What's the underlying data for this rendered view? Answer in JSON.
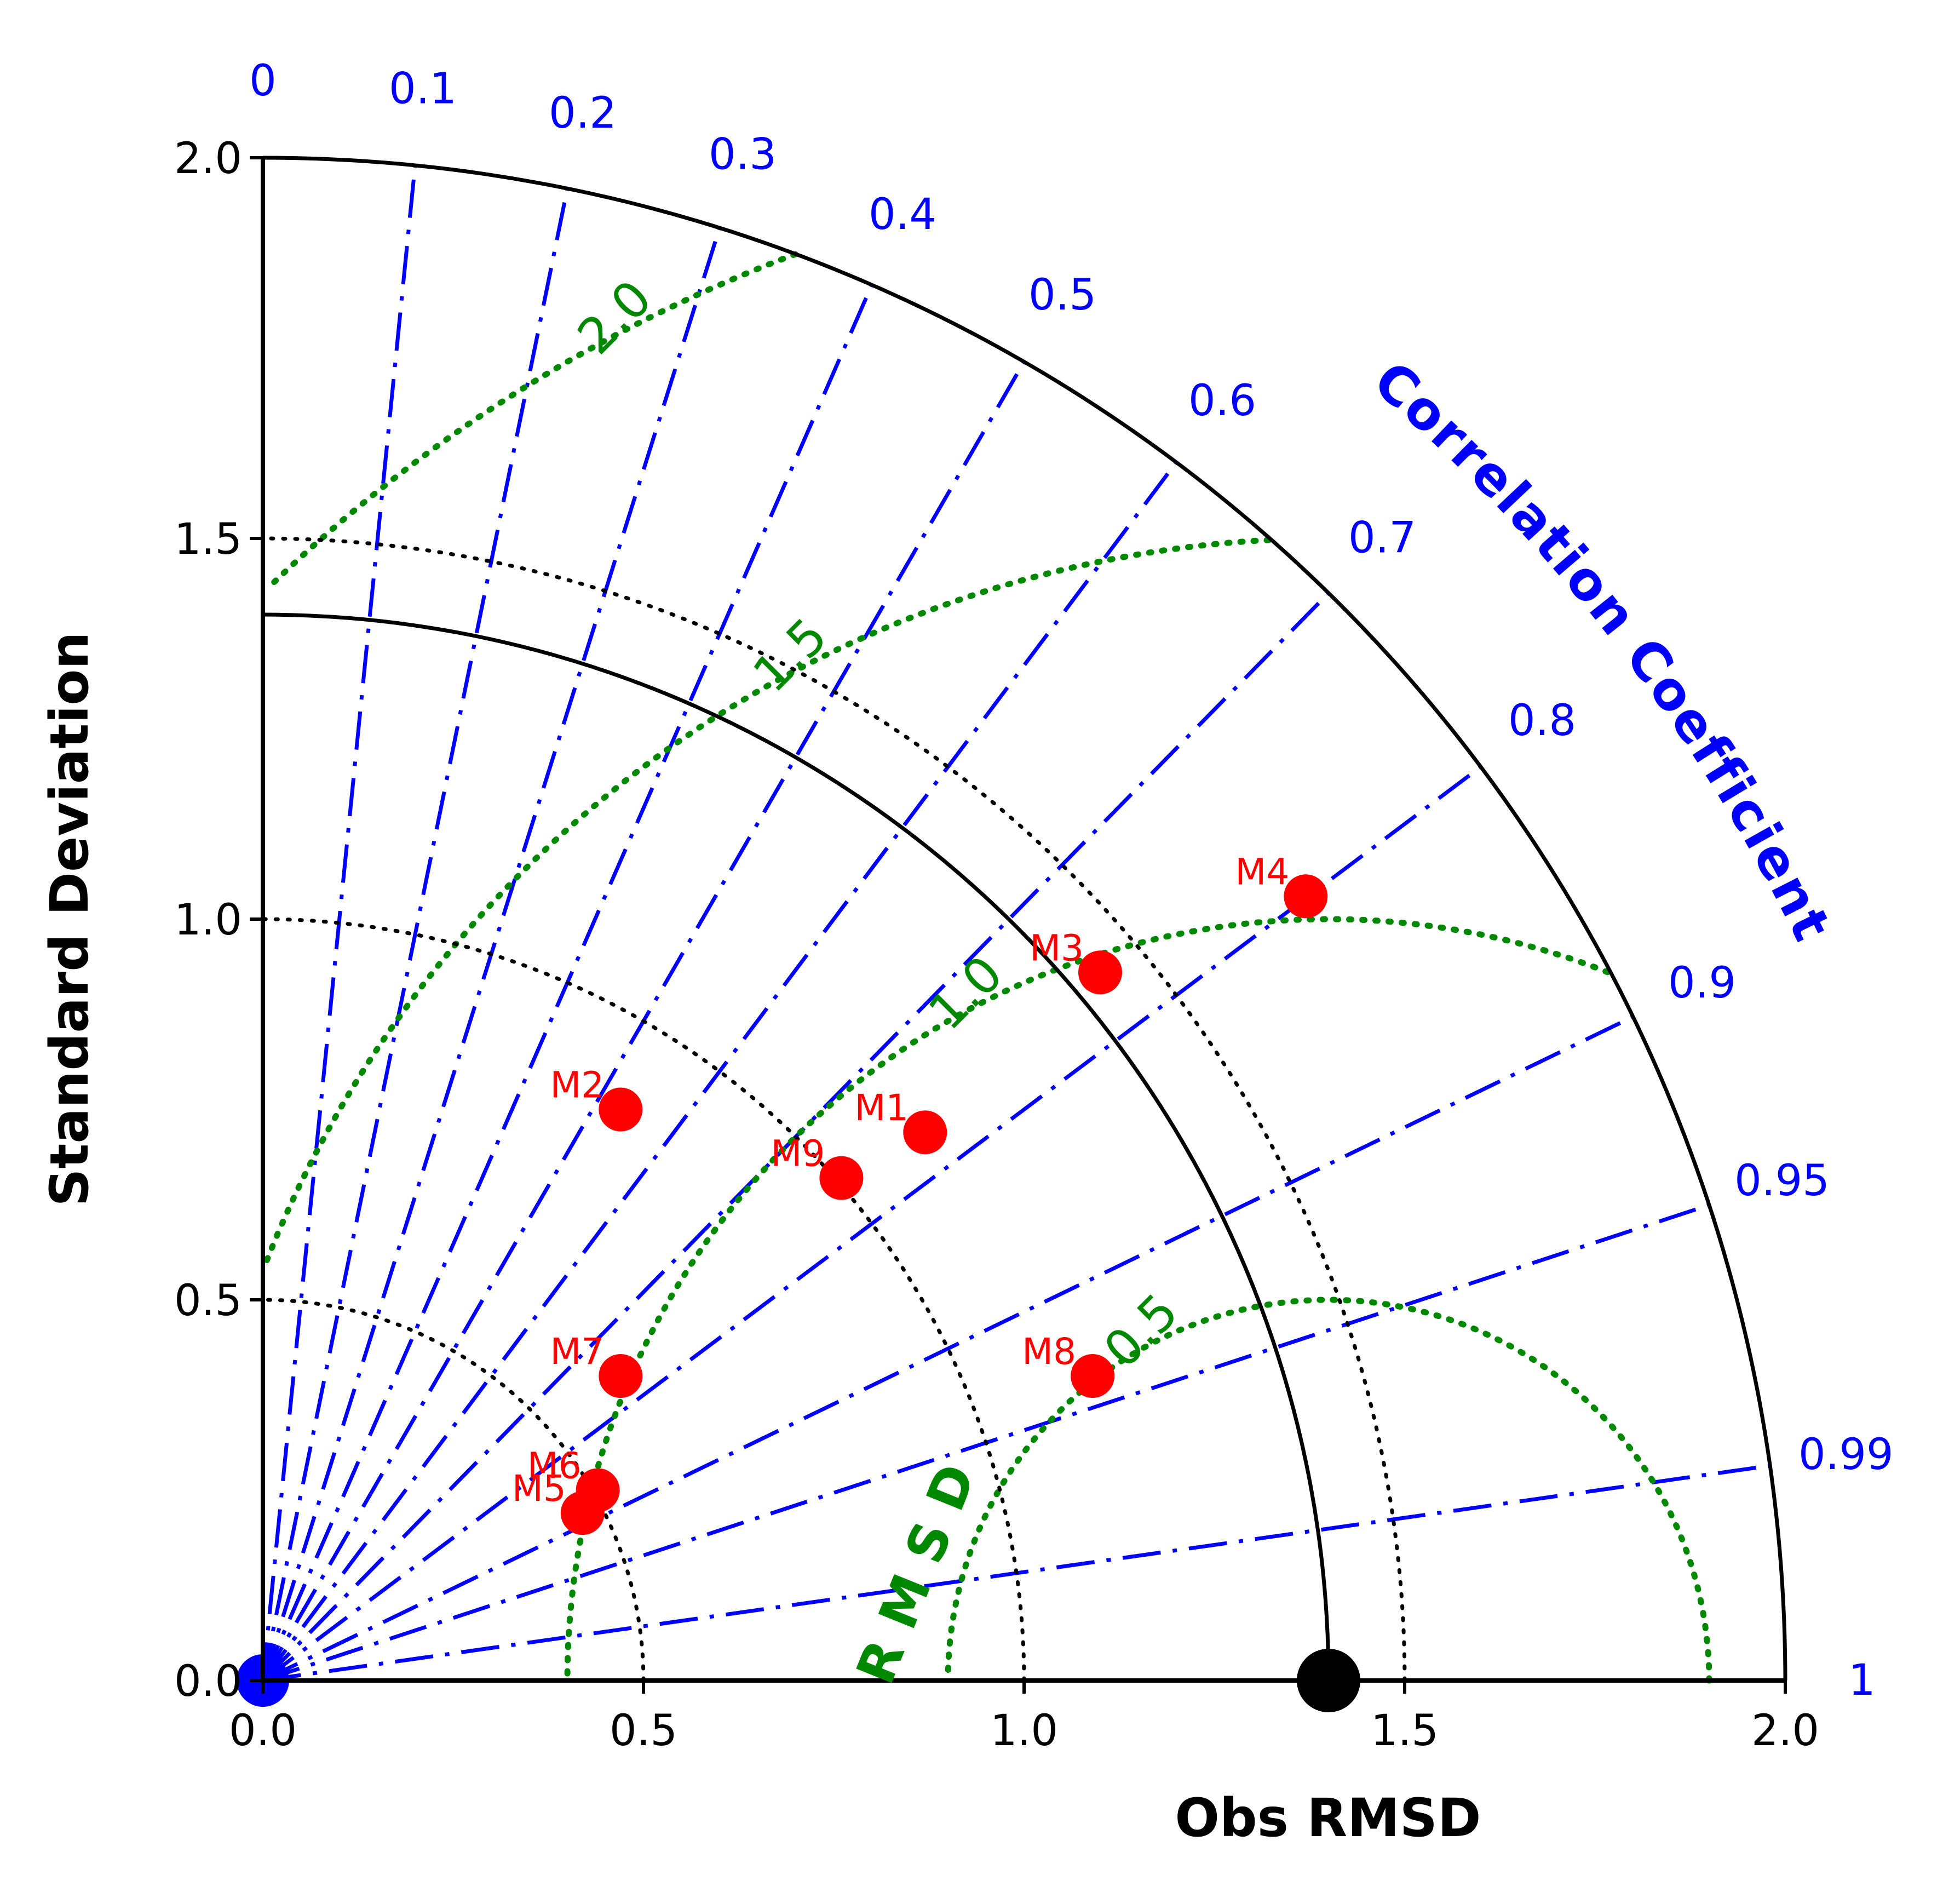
{
  "chart_data": {
    "type": "scatter",
    "subtype": "taylor-diagram",
    "title": "",
    "xlabel": "Obs RMSD",
    "ylabel": "Standard Deviation",
    "xlim": [
      0,
      2.0
    ],
    "ylim": [
      0,
      2.0
    ],
    "std_ticks": [
      "0.0",
      "0.5",
      "1.0",
      "1.5",
      "2.0"
    ],
    "std_tick_values": [
      0,
      0.5,
      1.0,
      1.5,
      2.0
    ],
    "correlation_label": "Correlation Coefficient",
    "correlation_ticks": [
      {
        "value": 0,
        "label": "0"
      },
      {
        "value": 0.1,
        "label": "0.1"
      },
      {
        "value": 0.2,
        "label": "0.2"
      },
      {
        "value": 0.3,
        "label": "0.3"
      },
      {
        "value": 0.4,
        "label": "0.4"
      },
      {
        "value": 0.5,
        "label": "0.5"
      },
      {
        "value": 0.6,
        "label": "0.6"
      },
      {
        "value": 0.7,
        "label": "0.7"
      },
      {
        "value": 0.8,
        "label": "0.8"
      },
      {
        "value": 0.9,
        "label": "0.9"
      },
      {
        "value": 0.95,
        "label": "0.95"
      },
      {
        "value": 0.99,
        "label": "0.99"
      },
      {
        "value": 1,
        "label": "1"
      }
    ],
    "rmsd_label": "RMSD",
    "rmsd_contours": [
      0.5,
      1.0,
      1.5,
      2.0
    ],
    "rmsd_contour_labels": [
      "0.5",
      "1.0",
      "1.5",
      "2.0"
    ],
    "std_arcs": [
      0.5,
      1.0,
      1.5
    ],
    "observation": {
      "std": 1.4,
      "label": ""
    },
    "points": [
      {
        "label": "M1",
        "x": 0.87,
        "y": 0.72
      },
      {
        "label": "M2",
        "x": 0.47,
        "y": 0.75
      },
      {
        "label": "M3",
        "x": 1.1,
        "y": 0.93
      },
      {
        "label": "M4",
        "x": 1.37,
        "y": 1.03
      },
      {
        "label": "M5",
        "x": 0.42,
        "y": 0.22
      },
      {
        "label": "M6",
        "x": 0.44,
        "y": 0.25
      },
      {
        "label": "M7",
        "x": 0.47,
        "y": 0.4
      },
      {
        "label": "M8",
        "x": 1.09,
        "y": 0.4
      },
      {
        "label": "M9",
        "x": 0.76,
        "y": 0.66
      }
    ],
    "grid": false,
    "colors": {
      "correlation": "#0000ff",
      "rmsd": "#008800",
      "std": "#000000",
      "points": "#ff0000"
    }
  }
}
